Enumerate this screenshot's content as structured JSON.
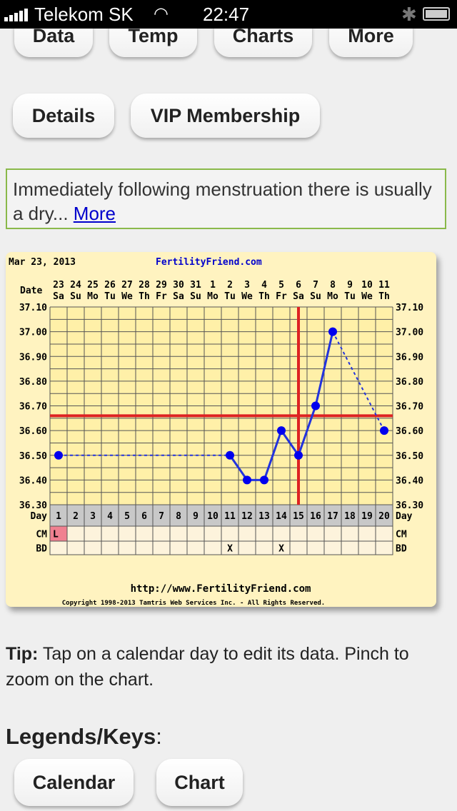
{
  "status": {
    "carrier": "Telekom SK",
    "time": "22:47"
  },
  "nav": {
    "data": "Data",
    "temp": "Temp",
    "charts": "Charts",
    "more": "More",
    "details": "Details",
    "vip": "VIP Membership"
  },
  "notice": {
    "text": "Immediately following menstruation there is usually a dry... ",
    "link": "More"
  },
  "chart_data": {
    "type": "line",
    "date_label": "Mar 23, 2013",
    "brand": "FertilityFriend.com",
    "row_label_date": "Date",
    "dates": [
      "23",
      "24",
      "25",
      "26",
      "27",
      "28",
      "29",
      "30",
      "31",
      "1",
      "2",
      "3",
      "4",
      "5",
      "6",
      "7",
      "8",
      "9",
      "10",
      "11"
    ],
    "weekdays": [
      "Sa",
      "Su",
      "Mo",
      "Tu",
      "We",
      "Th",
      "Fr",
      "Sa",
      "Su",
      "Mo",
      "Tu",
      "We",
      "Th",
      "Fr",
      "Sa",
      "Su",
      "Mo",
      "Tu",
      "We",
      "Th"
    ],
    "y_ticks": [
      "37.10",
      "37.00",
      "36.90",
      "36.80",
      "36.70",
      "36.60",
      "36.50",
      "36.40",
      "36.30"
    ],
    "ylim": [
      36.3,
      37.1
    ],
    "days": [
      1,
      2,
      3,
      4,
      5,
      6,
      7,
      8,
      9,
      10,
      11,
      12,
      13,
      14,
      15,
      16,
      17,
      18,
      19,
      20
    ],
    "points": [
      {
        "day": 1,
        "temp": 36.5
      },
      {
        "day": 11,
        "temp": 36.5
      },
      {
        "day": 12,
        "temp": 36.4
      },
      {
        "day": 13,
        "temp": 36.4
      },
      {
        "day": 14,
        "temp": 36.6
      },
      {
        "day": 15,
        "temp": 36.5
      },
      {
        "day": 16,
        "temp": 36.7
      },
      {
        "day": 17,
        "temp": 37.0
      },
      {
        "day": 20,
        "temp": 36.6
      }
    ],
    "coverline": 36.66,
    "ovulation_day": 15,
    "row_labels": {
      "day": "Day",
      "cm": "CM",
      "bd": "BD"
    },
    "cm": {
      "1": "L"
    },
    "bd": {
      "11": "X",
      "14": "X"
    },
    "url": "http://www.FertilityFriend.com",
    "copyright": "Copyright 1998-2013 Tamtris Web Services Inc. - All Rights Reserved.",
    "colors": {
      "line": "#2233dd",
      "point": "#0000ee",
      "red": "#dd2222",
      "cm_l": "#f08090"
    }
  },
  "tip": {
    "label": "Tip:",
    "text": " Tap on a calendar day to edit its data. Pinch to zoom on the chart."
  },
  "legends": {
    "title": "Legends/Keys",
    "colon": ":",
    "calendar": "Calendar",
    "chart": "Chart"
  }
}
